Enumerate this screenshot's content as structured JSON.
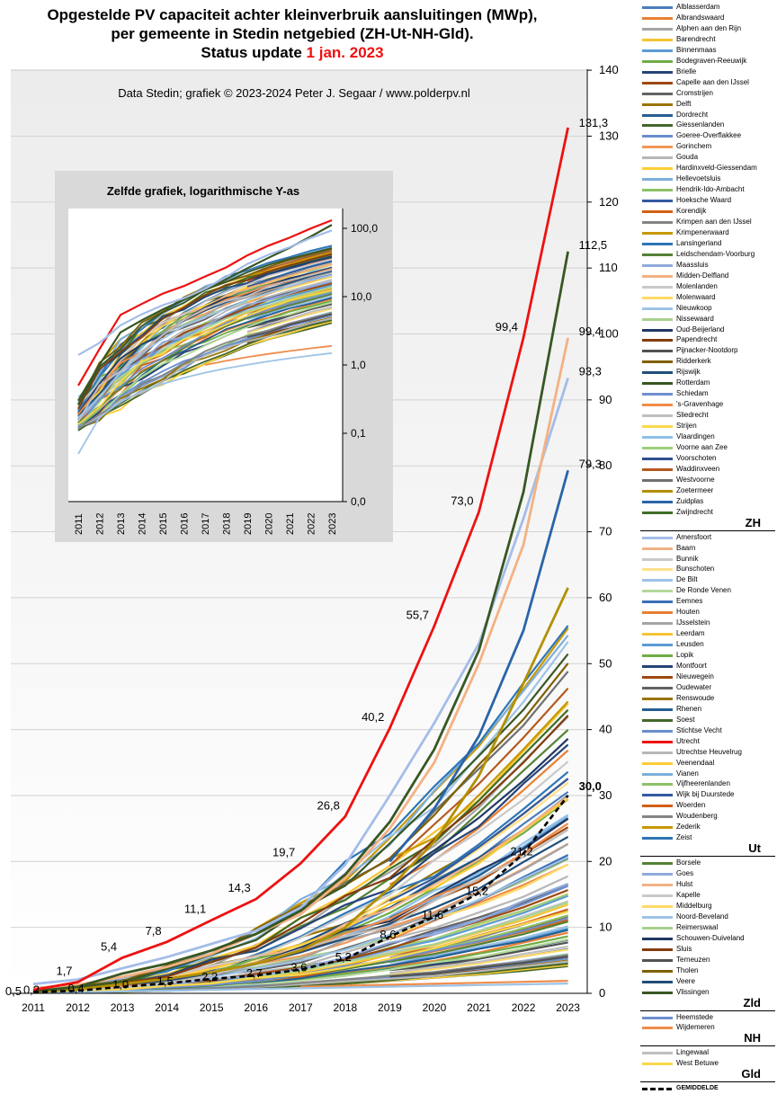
{
  "title": {
    "line1": "Opgestelde PV capaciteit achter kleinverbruik aansluitingen (MWp),",
    "line2": "per gemeente in Stedin netgebied (ZH-Ut-NH-Gld).",
    "line3_prefix": "Status update ",
    "line3_highlight": "1 jan. 2023"
  },
  "credit": "Data Stedin; grafiek © 2023-2024 Peter J. Segaar / www.polderpv.nl",
  "inset_title": "Zelfde grafiek, logarithmische Y-as",
  "colors": {
    "utrecht": "#ee1111",
    "highlight": "#ee1111",
    "average": "#000000"
  },
  "chart_data": [
    {
      "type": "line",
      "x": [
        2011,
        2012,
        2013,
        2014,
        2015,
        2016,
        2017,
        2018,
        2019,
        2020,
        2021,
        2022,
        2023
      ],
      "ylim": [
        0,
        140
      ],
      "yticks": [
        0,
        10,
        20,
        30,
        40,
        50,
        60,
        70,
        80,
        90,
        100,
        110,
        120,
        130,
        140
      ],
      "grid": true,
      "legend": "right",
      "series": [
        {
          "name": "Utrecht",
          "values": [
            0.5,
            1.7,
            5.4,
            7.8,
            11.1,
            14.3,
            19.7,
            26.8,
            40.2,
            55.7,
            73.0,
            99.4,
            131.3
          ]
        },
        {
          "name": "Rotterdam",
          "values": [
            0.3,
            1.0,
            3.0,
            4.5,
            6.5,
            9.0,
            12.5,
            18.0,
            26.0,
            37.0,
            52.0,
            76.0,
            112.5
          ]
        },
        {
          "name": "Midden-Delfland",
          "values": [
            0.8,
            1.3,
            2.5,
            4.0,
            6.0,
            9.0,
            12.0,
            17.5,
            25.0,
            35.0,
            50.0,
            68.0,
            99.4
          ]
        },
        {
          "name": "Amersfoort",
          "values": [
            1.4,
            2.1,
            3.8,
            5.5,
            7.5,
            9.5,
            13.0,
            19.5,
            30.0,
            41.0,
            53.0,
            72.0,
            93.3
          ]
        },
        {
          "name": "Zuidplas",
          "values": [
            null,
            null,
            null,
            null,
            null,
            null,
            null,
            null,
            20.0,
            28.0,
            39.0,
            55.0,
            79.3
          ]
        },
        {
          "name": "Zoetermeer",
          "values": [
            0.2,
            0.6,
            1.4,
            2.2,
            3.2,
            4.5,
            6.5,
            10.0,
            16.0,
            23.0,
            33.0,
            47.0,
            61.5
          ]
        },
        {
          "name": "GEMIDDELDE",
          "values": [
            0.2,
            0.4,
            1.0,
            1.5,
            2.2,
            2.7,
            3.6,
            5.2,
            8.6,
            11.6,
            15.2,
            21.2,
            30.0
          ]
        }
      ],
      "labels_utrecht": [
        "0,5",
        "1,7",
        "5,4",
        "7,8",
        "11,1",
        "14,3",
        "19,7",
        "26,8",
        "40,2",
        "55,7",
        "73,0",
        "99,4",
        "131,3"
      ],
      "labels_average": [
        "0,2",
        "0,4",
        "1,0",
        "1,5",
        "2,2",
        "2,7",
        "3,6",
        "5,2",
        "8,6",
        "11,6",
        "15,2",
        "21,2",
        "30,0"
      ],
      "end_labels": [
        "112,5",
        "99,4",
        "93,3",
        "79,3"
      ],
      "ytick_labels": [
        "0",
        "10",
        "20",
        "30",
        "40",
        "50",
        "60",
        "70",
        "80",
        "90",
        "100",
        "110",
        "120",
        "130",
        "140"
      ],
      "xtick_labels": [
        "2011",
        "2012",
        "2013",
        "2014",
        "2015",
        "2016",
        "2017",
        "2018",
        "2019",
        "2020",
        "2021",
        "2022",
        "2023"
      ]
    },
    {
      "type": "line",
      "title": "Zelfde grafiek, logarithmische Y-as",
      "x": [
        2011,
        2012,
        2013,
        2014,
        2015,
        2016,
        2017,
        2018,
        2019,
        2020,
        2021,
        2022,
        2023
      ],
      "yscale": "log",
      "yticks": [
        0.0,
        0.1,
        1.0,
        10.0,
        100.0
      ],
      "ytick_labels": [
        "0,0",
        "0,1",
        "1,0",
        "10,0",
        "100,0"
      ],
      "xtick_labels": [
        "2011",
        "2012",
        "2013",
        "2014",
        "2015",
        "2016",
        "2017",
        "2018",
        "2019",
        "2020",
        "2021",
        "2022",
        "2023"
      ],
      "series": [
        {
          "name": "Utrecht",
          "values": [
            0.5,
            1.7,
            5.4,
            7.8,
            11.1,
            14.3,
            19.7,
            26.8,
            40.2,
            55.7,
            73.0,
            99.4,
            131.3
          ]
        },
        {
          "name": "Rotterdam",
          "values": [
            0.3,
            1.0,
            3.0,
            4.5,
            6.5,
            9.0,
            12.5,
            18.0,
            26.0,
            37.0,
            52.0,
            76.0,
            112.5
          ]
        },
        {
          "name": "Amersfoort",
          "values": [
            1.4,
            2.1,
            3.8,
            5.5,
            7.5,
            9.5,
            13.0,
            19.5,
            30.0,
            41.0,
            53.0,
            72.0,
            93.3
          ]
        },
        {
          "name": "GEMIDDELDE",
          "values": [
            0.2,
            0.4,
            1.0,
            1.5,
            2.2,
            2.7,
            3.6,
            5.2,
            8.6,
            11.6,
            15.2,
            21.2,
            30.0
          ]
        }
      ]
    }
  ],
  "legend": {
    "groups": [
      {
        "label": "ZH",
        "items": [
          {
            "name": "Alblasserdam",
            "color": "#4a7ebb"
          },
          {
            "name": "Albrandswaard",
            "color": "#e97f32"
          },
          {
            "name": "Alphen aan den Rijn",
            "color": "#a5a5a5"
          },
          {
            "name": "Barendrecht",
            "color": "#f6c434"
          },
          {
            "name": "Binnenmaas",
            "color": "#5b9bd5"
          },
          {
            "name": "Bodegraven-Reeuwijk",
            "color": "#70ad47"
          },
          {
            "name": "Brielle",
            "color": "#264478"
          },
          {
            "name": "Capelle aan den IJssel",
            "color": "#9e480e"
          },
          {
            "name": "Cromstrijen",
            "color": "#636363"
          },
          {
            "name": "Delft",
            "color": "#997300"
          },
          {
            "name": "Dordrecht",
            "color": "#255e91"
          },
          {
            "name": "Giessenlanden",
            "color": "#43682b"
          },
          {
            "name": "Goeree-Overflakkee",
            "color": "#698ed0"
          },
          {
            "name": "Gorinchem",
            "color": "#f1975a"
          },
          {
            "name": "Gouda",
            "color": "#b7b7b7"
          },
          {
            "name": "Hardinxveld-Giessendam",
            "color": "#ffcd33"
          },
          {
            "name": "Hellevoetsluis",
            "color": "#7cafdd"
          },
          {
            "name": "Hendrik-Ido-Ambacht",
            "color": "#8cc168"
          },
          {
            "name": "Hoeksche Waard",
            "color": "#335aa1"
          },
          {
            "name": "Korendijk",
            "color": "#d26012"
          },
          {
            "name": "Krimpen aan den IJssel",
            "color": "#848484"
          },
          {
            "name": "Krimpenerwaard",
            "color": "#c89800"
          },
          {
            "name": "Lansingerland",
            "color": "#2e75b6"
          },
          {
            "name": "Leidschendam-Voorburg",
            "color": "#548235"
          },
          {
            "name": "Maassluis",
            "color": "#8faadc"
          },
          {
            "name": "Midden-Delfland",
            "color": "#f4b183"
          },
          {
            "name": "Molenlanden",
            "color": "#c9c9c9"
          },
          {
            "name": "Molenwaard",
            "color": "#ffd966"
          },
          {
            "name": "Nieuwkoop",
            "color": "#9dc3e6"
          },
          {
            "name": "Nissewaard",
            "color": "#a9d18e"
          },
          {
            "name": "Oud-Beijerland",
            "color": "#203864"
          },
          {
            "name": "Papendrecht",
            "color": "#843c0c"
          },
          {
            "name": "Pijnacker-Nootdorp",
            "color": "#525252"
          },
          {
            "name": "Ridderkerk",
            "color": "#7f6000"
          },
          {
            "name": "Rijswijk",
            "color": "#1f4e79"
          },
          {
            "name": "Rotterdam",
            "color": "#385723"
          },
          {
            "name": "Schiedam",
            "color": "#6f8fcf"
          },
          {
            "name": "'s-Gravenhage",
            "color": "#f08c4a"
          },
          {
            "name": "Sliedrecht",
            "color": "#bfbfbf"
          },
          {
            "name": "Strijen",
            "color": "#f9d84a"
          },
          {
            "name": "Vlaardingen",
            "color": "#8ec0e8"
          },
          {
            "name": "Voorne aan Zee",
            "color": "#9ccf7a"
          },
          {
            "name": "Voorschoten",
            "color": "#2f4f8f"
          },
          {
            "name": "Waddinxveen",
            "color": "#b35a1f"
          },
          {
            "name": "Westvoorne",
            "color": "#707070"
          },
          {
            "name": "Zoetermeer",
            "color": "#b38f00"
          },
          {
            "name": "Zuidplas",
            "color": "#2a64a8"
          },
          {
            "name": "Zwijndrecht",
            "color": "#3f6e27"
          }
        ]
      },
      {
        "label": "Ut",
        "items": [
          {
            "name": "Amersfoort",
            "color": "#a4bde8"
          },
          {
            "name": "Baarn",
            "color": "#f4b183"
          },
          {
            "name": "Bunnik",
            "color": "#c9c9c9"
          },
          {
            "name": "Bunschoten",
            "color": "#ffe08a"
          },
          {
            "name": "De Bilt",
            "color": "#9dc3e6"
          },
          {
            "name": "De Ronde Venen",
            "color": "#b4d99a"
          },
          {
            "name": "Eemnes",
            "color": "#3b6fb6"
          },
          {
            "name": "Houten",
            "color": "#e97f32"
          },
          {
            "name": "IJsselstein",
            "color": "#a5a5a5"
          },
          {
            "name": "Leerdam",
            "color": "#f6c434"
          },
          {
            "name": "Leusden",
            "color": "#5b9bd5"
          },
          {
            "name": "Lopik",
            "color": "#70ad47"
          },
          {
            "name": "Montfoort",
            "color": "#264478"
          },
          {
            "name": "Nieuwegein",
            "color": "#9e480e"
          },
          {
            "name": "Oudewater",
            "color": "#636363"
          },
          {
            "name": "Renswoude",
            "color": "#997300"
          },
          {
            "name": "Rhenen",
            "color": "#255e91"
          },
          {
            "name": "Soest",
            "color": "#43682b"
          },
          {
            "name": "Stichtse Vecht",
            "color": "#698ed0"
          },
          {
            "name": "Utrecht",
            "color": "#ee1111"
          },
          {
            "name": "Utrechtse Heuvelrug",
            "color": "#b7b7b7"
          },
          {
            "name": "Veenendaal",
            "color": "#ffcd33"
          },
          {
            "name": "Vianen",
            "color": "#7cafdd"
          },
          {
            "name": "Vijfheerenlanden",
            "color": "#8cc168"
          },
          {
            "name": "Wijk bij Duurstede",
            "color": "#335aa1"
          },
          {
            "name": "Woerden",
            "color": "#d26012"
          },
          {
            "name": "Woudenberg",
            "color": "#848484"
          },
          {
            "name": "Zederik",
            "color": "#c89800"
          },
          {
            "name": "Zeist",
            "color": "#2e75b6"
          }
        ]
      },
      {
        "label": "Zld",
        "items": [
          {
            "name": "Borsele",
            "color": "#548235"
          },
          {
            "name": "Goes",
            "color": "#8faadc"
          },
          {
            "name": "Hulst",
            "color": "#f4b183"
          },
          {
            "name": "Kapelle",
            "color": "#c9c9c9"
          },
          {
            "name": "Middelburg",
            "color": "#ffd966"
          },
          {
            "name": "Noord-Beveland",
            "color": "#9dc3e6"
          },
          {
            "name": "Reimerswaal",
            "color": "#a9d18e"
          },
          {
            "name": "Schouwen-Duiveland",
            "color": "#203864"
          },
          {
            "name": "Sluis",
            "color": "#843c0c"
          },
          {
            "name": "Terneuzen",
            "color": "#525252"
          },
          {
            "name": "Tholen",
            "color": "#7f6000"
          },
          {
            "name": "Veere",
            "color": "#1f4e79"
          },
          {
            "name": "Vlissingen",
            "color": "#385723"
          }
        ]
      },
      {
        "label": "NH",
        "items": [
          {
            "name": "Heemstede",
            "color": "#6f8fcf"
          },
          {
            "name": "Wijdemeren",
            "color": "#f08c4a"
          }
        ]
      },
      {
        "label": "Gld",
        "items": [
          {
            "name": "Lingewaal",
            "color": "#bfbfbf"
          },
          {
            "name": "West Betuwe",
            "color": "#f9d84a"
          }
        ]
      }
    ],
    "average_label": "GEMIDDELDE"
  }
}
